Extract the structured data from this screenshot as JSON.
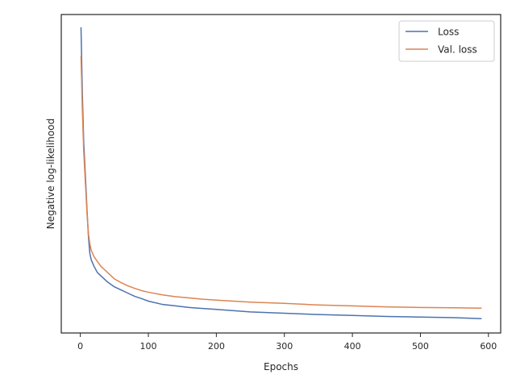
{
  "chart_data": {
    "type": "line",
    "title": "",
    "xlabel": "Epochs",
    "ylabel": "Negative log-likelihood",
    "xlim": [
      -28,
      618
    ],
    "ylim": [
      0.0,
      1.0
    ],
    "xticks": [
      0,
      100,
      200,
      300,
      400,
      500,
      600
    ],
    "yticks_shown": false,
    "grid": false,
    "legend_position": "top-right",
    "series": [
      {
        "name": "Loss",
        "color": "#4c72b0",
        "x": [
          1,
          3,
          5,
          8,
          10,
          12,
          14,
          16,
          18,
          20,
          25,
          30,
          40,
          50,
          60,
          70,
          80,
          90,
          100,
          120,
          140,
          160,
          180,
          200,
          250,
          300,
          350,
          400,
          450,
          500,
          550,
          590
        ],
        "y": [
          0.96,
          0.75,
          0.6,
          0.47,
          0.38,
          0.3,
          0.25,
          0.23,
          0.22,
          0.21,
          0.19,
          0.18,
          0.16,
          0.145,
          0.135,
          0.125,
          0.115,
          0.108,
          0.1,
          0.09,
          0.085,
          0.08,
          0.077,
          0.074,
          0.066,
          0.062,
          0.058,
          0.055,
          0.052,
          0.05,
          0.048,
          0.045
        ]
      },
      {
        "name": "Val. loss",
        "color": "#dd8452",
        "x": [
          1,
          3,
          5,
          8,
          10,
          12,
          14,
          16,
          18,
          20,
          25,
          30,
          40,
          50,
          60,
          70,
          80,
          90,
          100,
          120,
          140,
          160,
          180,
          200,
          250,
          300,
          350,
          400,
          450,
          500,
          550,
          590
        ],
        "y": [
          0.87,
          0.7,
          0.57,
          0.45,
          0.37,
          0.31,
          0.28,
          0.26,
          0.25,
          0.24,
          0.225,
          0.21,
          0.19,
          0.17,
          0.158,
          0.148,
          0.14,
          0.133,
          0.128,
          0.12,
          0.114,
          0.11,
          0.106,
          0.103,
          0.097,
          0.093,
          0.088,
          0.085,
          0.082,
          0.08,
          0.079,
          0.078
        ]
      }
    ]
  }
}
